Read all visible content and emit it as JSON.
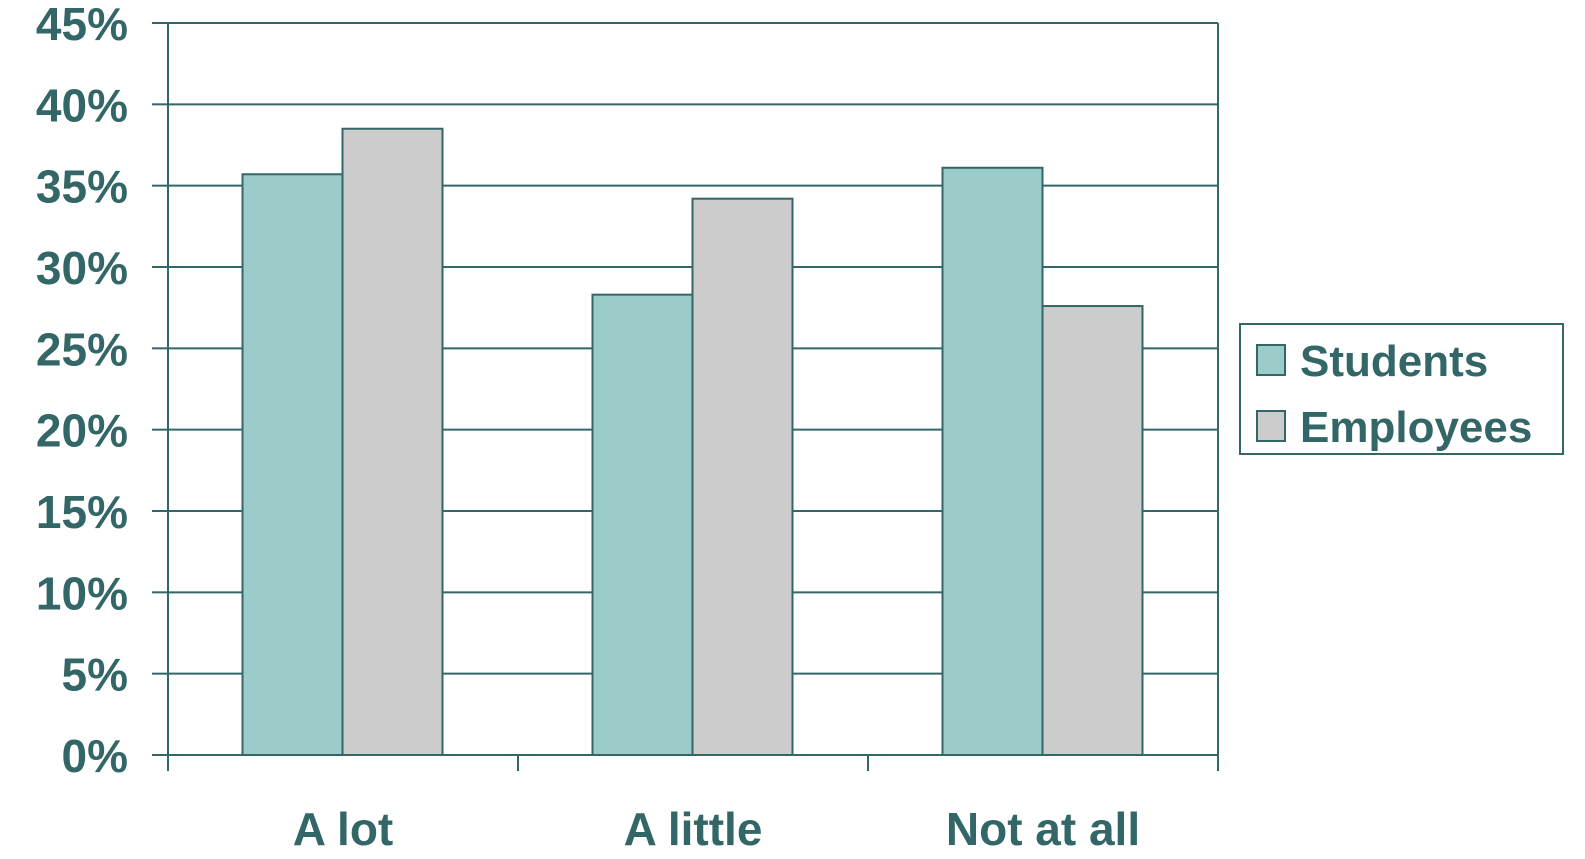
{
  "chart_data": {
    "type": "bar",
    "categories": [
      "A lot",
      "A little",
      "Not at all"
    ],
    "series": [
      {
        "name": "Students",
        "values": [
          35.7,
          28.3,
          36.1
        ],
        "color": "#9CCCCA"
      },
      {
        "name": "Employees",
        "values": [
          38.5,
          34.2,
          27.6
        ],
        "color": "#CCCCCC"
      }
    ],
    "ylim": [
      0,
      45
    ],
    "yticks": [
      0,
      5,
      10,
      15,
      20,
      25,
      30,
      35,
      40,
      45
    ],
    "ytick_labels": [
      "0%",
      "5%",
      "10%",
      "15%",
      "20%",
      "25%",
      "30%",
      "35%",
      "40%",
      "45%"
    ],
    "title": "",
    "xlabel": "",
    "ylabel": "",
    "grid": true,
    "legend_position": "right",
    "text_color": "#336666",
    "axis_color": "#336666"
  }
}
